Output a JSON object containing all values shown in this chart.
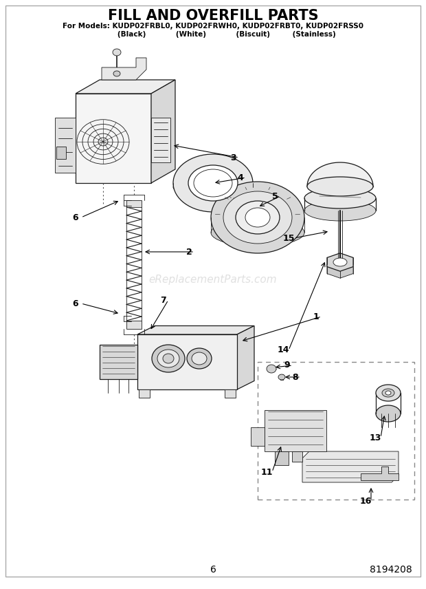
{
  "title": "FILL AND OVERFILL PARTS",
  "subtitle": "For Models: KUDP02FRBL0, KUDP02FRWH0, KUDP02FRBT0, KUDP02FRSS0",
  "subtitle2": "           (Black)            (White)            (Biscuit)         (Stainless)",
  "page_number": "6",
  "part_number": "8194208",
  "watermark": "eReplacementParts.com",
  "bg": "#ffffff",
  "lc": "#1a1a1a",
  "fc_light": "#f5f5f5",
  "fc_mid": "#e0e0e0",
  "fc_dark": "#cccccc"
}
